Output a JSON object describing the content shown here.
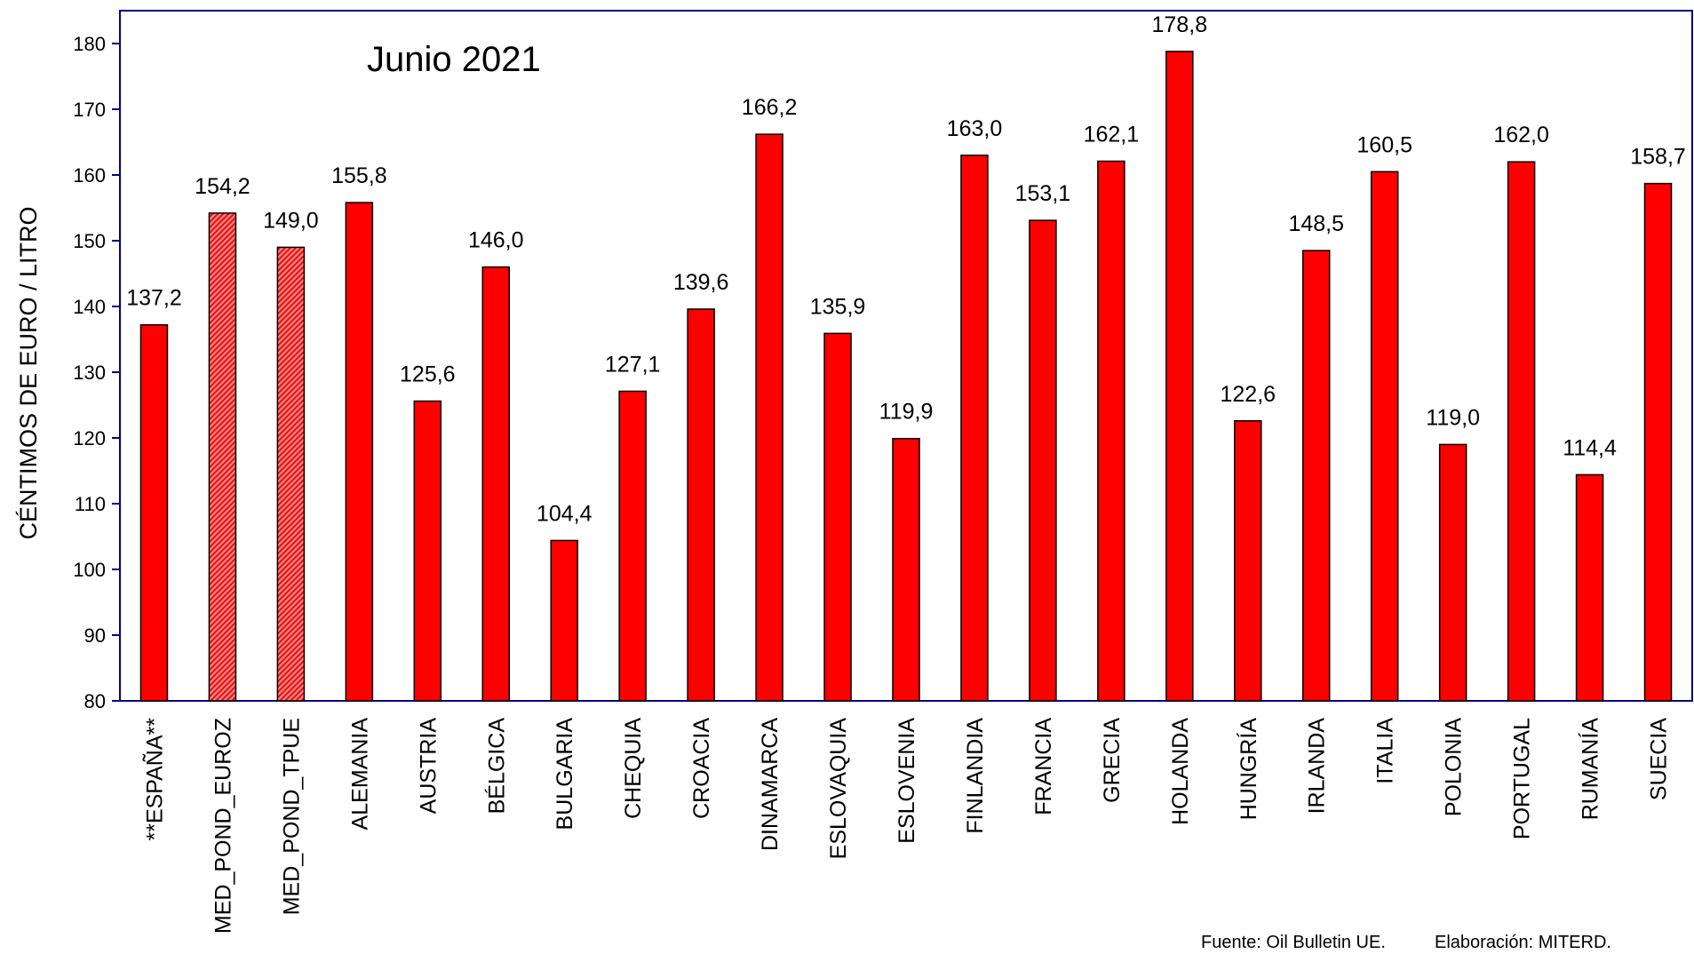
{
  "chart_data": {
    "type": "bar",
    "title": "Junio 2021",
    "ylabel": "CÉNTIMOS DE EURO / LITRO",
    "xlabel": "",
    "ylim": [
      80,
      180
    ],
    "yticks": [
      80,
      90,
      100,
      110,
      120,
      130,
      140,
      150,
      160,
      170,
      180
    ],
    "grid": false,
    "categories": [
      "**ESPAÑA**",
      "MED_POND_EUROZ",
      "MED_POND_TPUE",
      "ALEMANIA",
      "AUSTRIA",
      "BÉLGICA",
      "BULGARIA",
      "CHEQUIA",
      "CROACIA",
      "DINAMARCA",
      "ESLOVAQUIA",
      "ESLOVENIA",
      "FINLANDIA",
      "FRANCIA",
      "GRECIA",
      "HOLANDA",
      "HUNGRÍA",
      "IRLANDA",
      "ITALIA",
      "POLONIA",
      "PORTUGAL",
      "RUMANÍA",
      "SUECIA"
    ],
    "values": [
      137.2,
      154.2,
      149.0,
      155.8,
      125.6,
      146.0,
      104.4,
      127.1,
      139.6,
      166.2,
      135.9,
      119.9,
      163.0,
      153.1,
      162.1,
      178.8,
      122.6,
      148.5,
      160.5,
      119.0,
      162.0,
      114.4,
      158.7
    ],
    "value_labels": [
      "137,2",
      "154,2",
      "149,0",
      "155,8",
      "125,6",
      "146,0",
      "104,4",
      "127,1",
      "139,6",
      "166,2",
      "135,9",
      "119,9",
      "163,0",
      "153,1",
      "162,1",
      "178,8",
      "122,6",
      "148,5",
      "160,5",
      "119,0",
      "162,0",
      "114,4",
      "158,7"
    ],
    "hatched_categories": [
      "MED_POND_EUROZ",
      "MED_POND_TPUE"
    ],
    "colors": {
      "bar": "#ff0000",
      "bar_hatched": "#ff8080",
      "bar_outline": "#000000",
      "frame": "#000080"
    }
  },
  "footer": {
    "source": "Fuente: Oil Bulletin UE.",
    "credit": "Elaboración: MITERD."
  }
}
